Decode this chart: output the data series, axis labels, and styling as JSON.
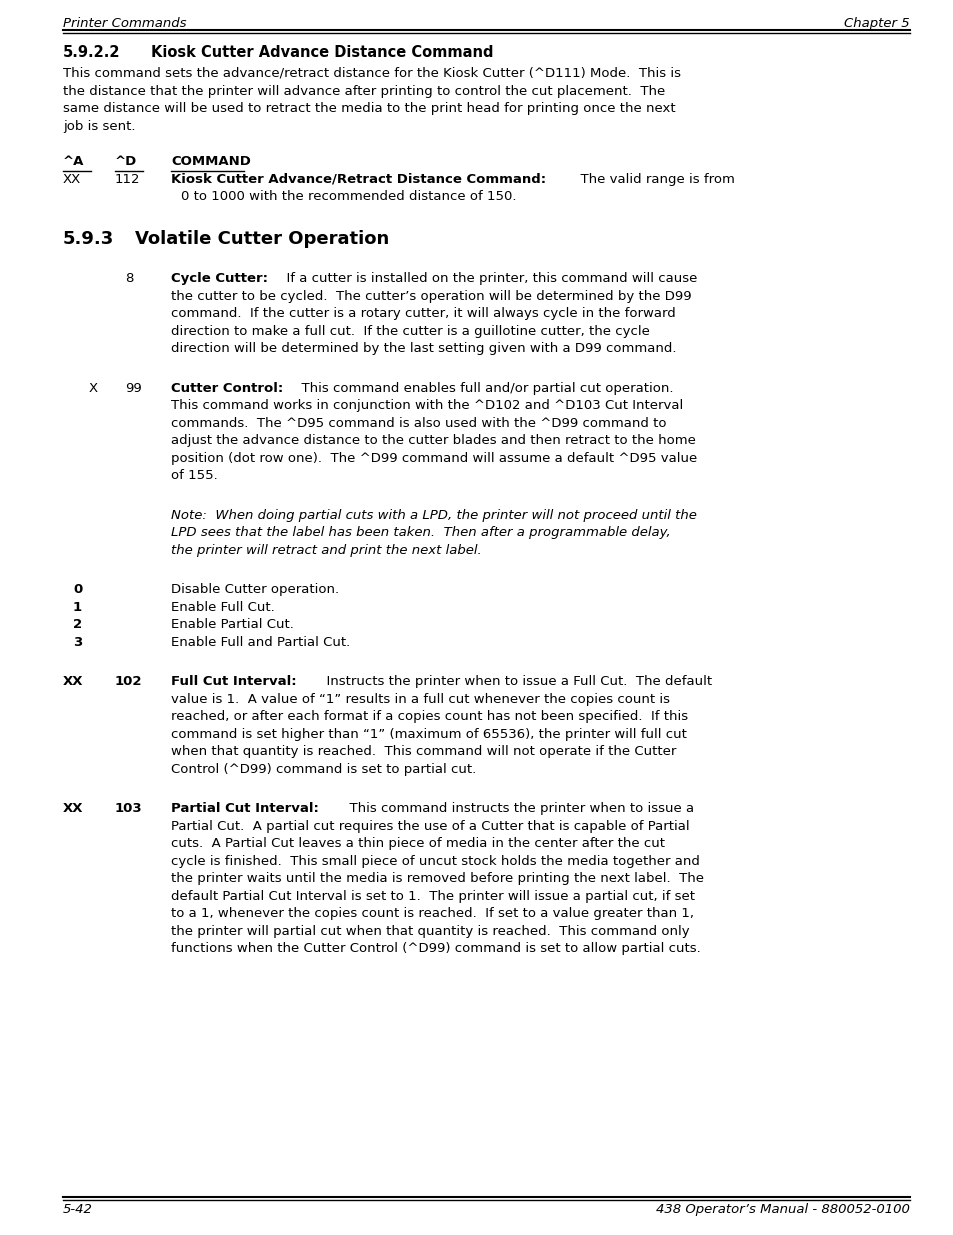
{
  "header_left": "Printer Commands",
  "header_right": "Chapter 5",
  "footer_left": "5-42",
  "footer_right": "438 Operator’s Manual - 880052-0100",
  "bg_color": "#ffffff"
}
